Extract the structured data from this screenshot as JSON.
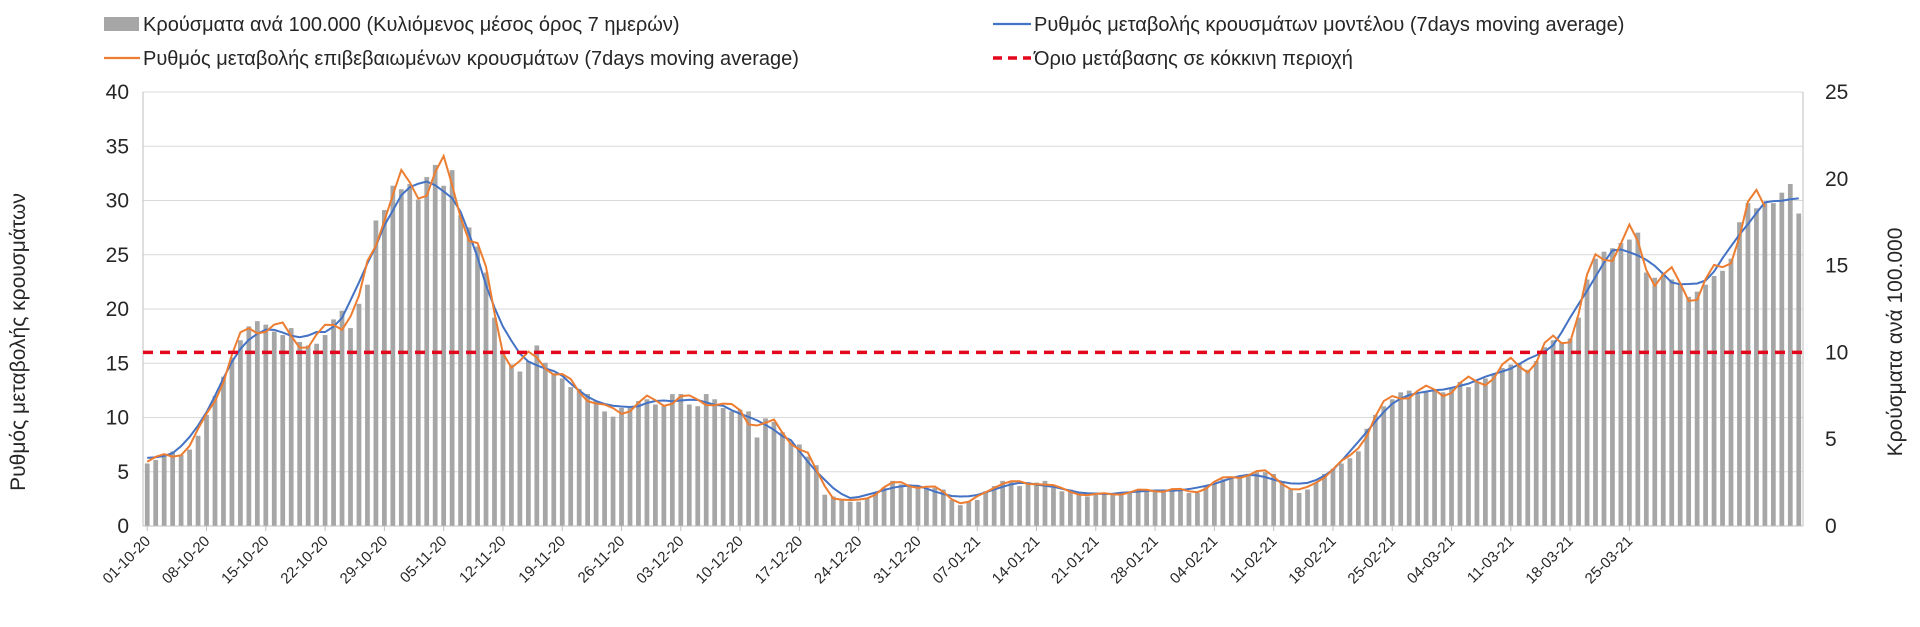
{
  "chart_data": {
    "type": "bar",
    "legend": {
      "placement": "top",
      "items": [
        {
          "key": "bars",
          "label": "Κρούσματα ανά 100.000 (Κυλιόμενος μέσος όρος 7 ημερών)"
        },
        {
          "key": "model",
          "label": "Ρυθμός μεταβολής κρουσμάτων μοντέλου (7days moving average)"
        },
        {
          "key": "confirmed",
          "label": "Ρυθμός μεταβολής επιβεβαιωμένων κρουσμάτων (7days moving average)"
        },
        {
          "key": "threshold",
          "label": "Όριο μετάβασης σε κόκκινη περιοχή"
        }
      ]
    },
    "ylabel": "Ρυθμός μεταβολής κρουσμάτων",
    "y2label": "Κρούσματα ανά 100.000",
    "ylim": [
      0,
      40
    ],
    "y2lim": [
      0,
      25
    ],
    "yticks": [
      0,
      5,
      10,
      15,
      20,
      25,
      30,
      35,
      40
    ],
    "y2ticks": [
      0,
      5,
      10,
      15,
      20,
      25
    ],
    "grid": true,
    "x_tick_labels": [
      "01-10-20",
      "08-10-20",
      "15-10-20",
      "22-10-20",
      "29-10-20",
      "05-11-20",
      "12-11-20",
      "19-11-20",
      "26-11-20",
      "03-12-20",
      "10-12-20",
      "17-12-20",
      "24-12-20",
      "31-12-20",
      "07-01-21",
      "14-01-21",
      "21-01-21",
      "28-01-21",
      "04-02-21",
      "11-02-21",
      "18-02-21",
      "25-02-21",
      "04-03-21",
      "11-03-21",
      "18-03-21",
      "25-03-21"
    ],
    "threshold": 16,
    "colors": {
      "bars": "#a6a6a6",
      "model": "#4472c4",
      "confirmed": "#ed7d31",
      "threshold": "#e3061d",
      "grid": "#d9d9d9",
      "axis": "#bfbfbf"
    },
    "bar_values": [
      3.6,
      3.8,
      4.0,
      4.3,
      4.1,
      4.4,
      5.2,
      6.4,
      7.5,
      8.6,
      9.7,
      10.7,
      11.5,
      11.8,
      11.6,
      11.2,
      11.0,
      11.4,
      10.6,
      10.4,
      10.5,
      11.0,
      11.9,
      12.4,
      11.4,
      12.8,
      13.9,
      17.6,
      18.2,
      19.6,
      19.4,
      19.7,
      18.8,
      20.1,
      20.8,
      19.6,
      20.5,
      17.9,
      17.2,
      16.1,
      14.6,
      12.0,
      10.0,
      9.3,
      8.9,
      9.5,
      10.4,
      9.4,
      8.8,
      8.5,
      8.0,
      7.9,
      7.6,
      7.2,
      6.6,
      6.3,
      6.8,
      6.8,
      7.2,
      7.3,
      7.0,
      6.9,
      7.6,
      7.6,
      7.0,
      6.9,
      7.6,
      7.3,
      6.8,
      6.6,
      6.7,
      6.6,
      5.1,
      6.2,
      6.0,
      5.4,
      4.8,
      4.7,
      4.0,
      3.5,
      1.8,
      1.7,
      1.5,
      1.4,
      1.4,
      1.6,
      1.9,
      2.2,
      2.6,
      2.4,
      2.4,
      2.3,
      2.2,
      2.2,
      2.1,
      1.5,
      1.2,
      1.4,
      1.5,
      2.0,
      2.3,
      2.6,
      2.6,
      2.3,
      2.5,
      2.5,
      2.6,
      2.2,
      2.0,
      2.1,
      1.9,
      1.7,
      1.8,
      1.8,
      1.9,
      1.9,
      1.9,
      2.0,
      2.1,
      2.0,
      2.1,
      2.1,
      2.1,
      1.9,
      1.9,
      2.3,
      2.5,
      2.7,
      2.8,
      2.9,
      3.0,
      3.1,
      3.1,
      3.0,
      2.5,
      2.1,
      1.9,
      2.1,
      2.5,
      3.0,
      3.3,
      3.6,
      3.9,
      4.3,
      5.6,
      6.4,
      6.9,
      7.3,
      7.7,
      7.8,
      7.6,
      7.7,
      7.8,
      7.7,
      7.9,
      8.3,
      8.0,
      8.3,
      8.5,
      8.7,
      9.1,
      9.3,
      9.4,
      9.0,
      9.5,
      10.3,
      10.7,
      10.6,
      10.8,
      12.0,
      14.2,
      15.4,
      15.8,
      16.0,
      16.3,
      16.5,
      16.9,
      14.6,
      14.3,
      14.5,
      14.2,
      13.9,
      13.2,
      13.5,
      13.9,
      14.4,
      14.7,
      15.4,
      17.5,
      18.6,
      18.3,
      18.6,
      18.6,
      19.2,
      19.7,
      18.0
    ]
  }
}
